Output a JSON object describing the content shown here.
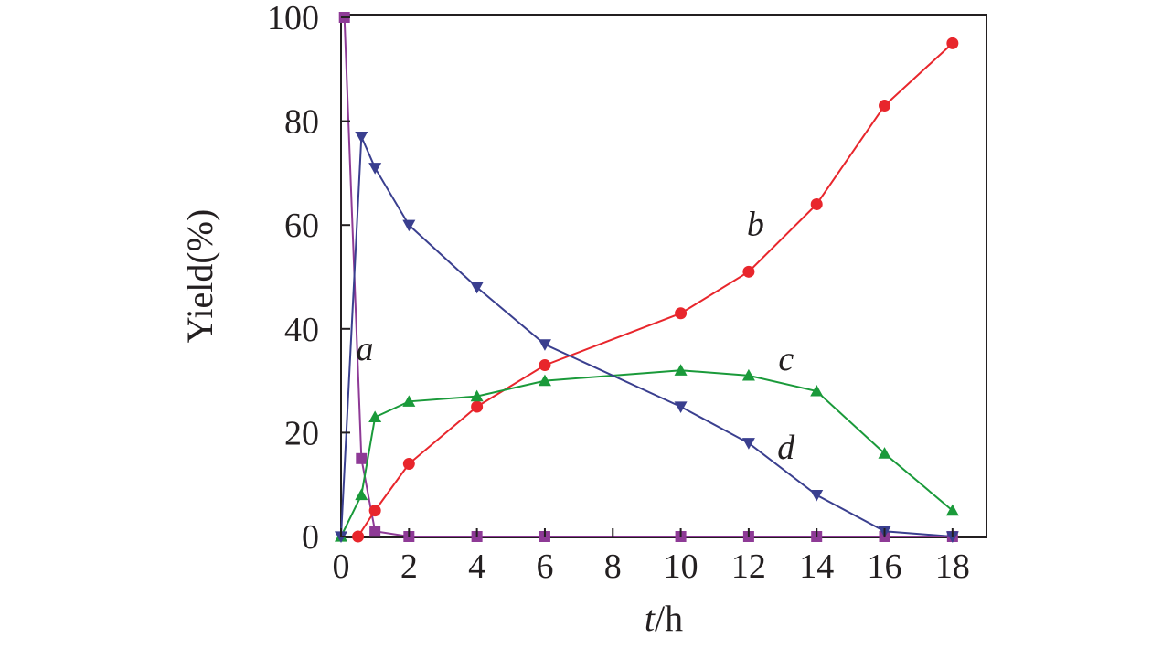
{
  "chart_data": {
    "type": "line",
    "xlabel": {
      "italic": "t",
      "rest": "/h"
    },
    "ylabel": "Yield(%)",
    "xlim": [
      0,
      19
    ],
    "ylim": [
      0,
      100
    ],
    "xticks": [
      0,
      2,
      4,
      6,
      8,
      10,
      12,
      14,
      16,
      18
    ],
    "yticks": [
      0,
      20,
      40,
      60,
      80,
      100
    ],
    "series": [
      {
        "name": "a",
        "color": "#8e3a96",
        "marker": "square",
        "points": [
          [
            0.1,
            100
          ],
          [
            0.6,
            15
          ],
          [
            1,
            1
          ],
          [
            2,
            0
          ],
          [
            4,
            0
          ],
          [
            6,
            0
          ],
          [
            10,
            0
          ],
          [
            12,
            0
          ],
          [
            14,
            0
          ],
          [
            16,
            0
          ],
          [
            18,
            0
          ]
        ]
      },
      {
        "name": "b",
        "color": "#e8262c",
        "marker": "circle",
        "points": [
          [
            0.5,
            0
          ],
          [
            1,
            5
          ],
          [
            2,
            14
          ],
          [
            4,
            25
          ],
          [
            6,
            33
          ],
          [
            10,
            43
          ],
          [
            12,
            51
          ],
          [
            14,
            64
          ],
          [
            16,
            83
          ],
          [
            18,
            95
          ]
        ]
      },
      {
        "name": "c",
        "color": "#1a9a3a",
        "marker": "triangle-up",
        "points": [
          [
            0,
            0
          ],
          [
            0.6,
            8
          ],
          [
            1,
            23
          ],
          [
            2,
            26
          ],
          [
            4,
            27
          ],
          [
            6,
            30
          ],
          [
            10,
            32
          ],
          [
            12,
            31
          ],
          [
            14,
            28
          ],
          [
            16,
            16
          ],
          [
            18,
            5
          ]
        ]
      },
      {
        "name": "d",
        "color": "#3a3f8f",
        "marker": "triangle-down",
        "points": [
          [
            0,
            0
          ],
          [
            0.6,
            77
          ],
          [
            1,
            71
          ],
          [
            2,
            60
          ],
          [
            4,
            48
          ],
          [
            6,
            37
          ],
          [
            10,
            25
          ],
          [
            12,
            18
          ],
          [
            14,
            8
          ],
          [
            16,
            1
          ],
          [
            18,
            0
          ]
        ]
      }
    ],
    "annotations": [
      {
        "text": "a",
        "x": 0.7,
        "y": 34
      },
      {
        "text": "b",
        "x": 12.2,
        "y": 58
      },
      {
        "text": "c",
        "x": 13.1,
        "y": 32
      },
      {
        "text": "d",
        "x": 13.1,
        "y": 15
      }
    ]
  }
}
